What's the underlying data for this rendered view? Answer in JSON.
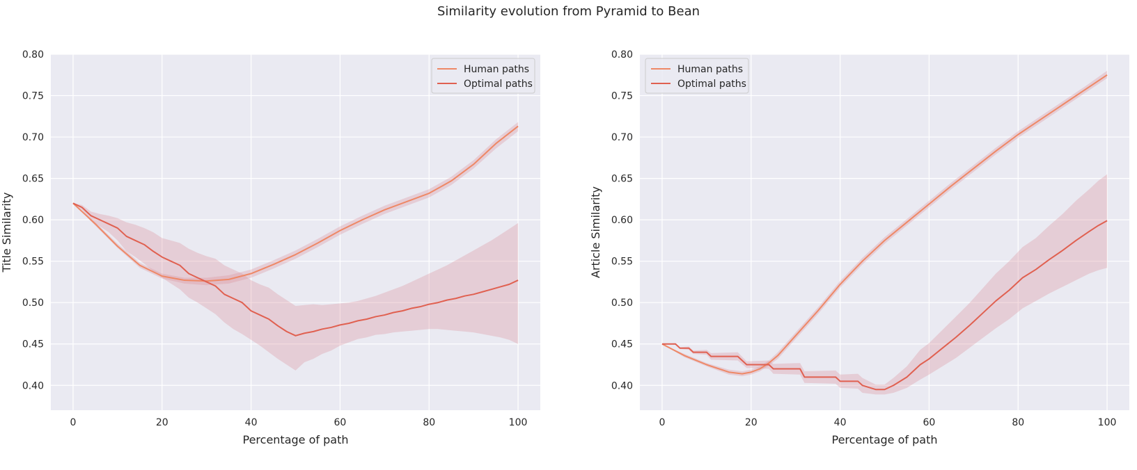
{
  "figure": {
    "suptitle": "Similarity evolution from Pyramid to Bean"
  },
  "colors": {
    "human": "#ee8866",
    "optimal": "#e06050",
    "band": "#d98c96",
    "axes_bg": "#eaeaf2",
    "grid": "#ffffff"
  },
  "chart_data": [
    {
      "type": "line",
      "xlabel": "Percentage of path",
      "ylabel": "Title Similarity",
      "xlim": [
        -5,
        105
      ],
      "ylim": [
        0.37,
        0.8
      ],
      "xticks": [
        0,
        20,
        40,
        60,
        80,
        100
      ],
      "yticks": [
        0.4,
        0.45,
        0.5,
        0.55,
        0.6,
        0.65,
        0.7,
        0.75,
        0.8
      ],
      "grid": true,
      "legend_position": "upper right",
      "series": [
        {
          "name": "Human paths",
          "x": [
            0,
            5,
            10,
            15,
            20,
            25,
            30,
            35,
            40,
            45,
            50,
            55,
            60,
            65,
            70,
            75,
            80,
            85,
            90,
            95,
            100
          ],
          "y": [
            0.62,
            0.595,
            0.568,
            0.545,
            0.532,
            0.527,
            0.526,
            0.528,
            0.535,
            0.546,
            0.558,
            0.572,
            0.587,
            0.6,
            0.612,
            0.622,
            0.632,
            0.647,
            0.667,
            0.692,
            0.713
          ],
          "lower": [
            0.62,
            0.593,
            0.566,
            0.542,
            0.529,
            0.523,
            0.521,
            0.523,
            0.53,
            0.541,
            0.553,
            0.567,
            0.582,
            0.595,
            0.607,
            0.617,
            0.627,
            0.642,
            0.662,
            0.686,
            0.707
          ],
          "upper": [
            0.62,
            0.597,
            0.571,
            0.548,
            0.535,
            0.53,
            0.53,
            0.533,
            0.54,
            0.551,
            0.563,
            0.577,
            0.592,
            0.605,
            0.617,
            0.627,
            0.637,
            0.652,
            0.672,
            0.697,
            0.718
          ]
        },
        {
          "name": "Optimal paths",
          "x": [
            0,
            2,
            4,
            6,
            8,
            10,
            12,
            14,
            16,
            18,
            20,
            22,
            24,
            26,
            28,
            30,
            32,
            34,
            36,
            38,
            40,
            42,
            44,
            46,
            48,
            50,
            52,
            54,
            56,
            58,
            60,
            62,
            64,
            66,
            68,
            70,
            72,
            74,
            76,
            78,
            80,
            82,
            84,
            86,
            88,
            90,
            92,
            94,
            96,
            98,
            100
          ],
          "y": [
            0.62,
            0.615,
            0.605,
            0.6,
            0.595,
            0.59,
            0.58,
            0.575,
            0.57,
            0.562,
            0.555,
            0.55,
            0.545,
            0.535,
            0.53,
            0.525,
            0.52,
            0.51,
            0.505,
            0.5,
            0.49,
            0.485,
            0.48,
            0.472,
            0.465,
            0.46,
            0.463,
            0.465,
            0.468,
            0.47,
            0.473,
            0.475,
            0.478,
            0.48,
            0.483,
            0.485,
            0.488,
            0.49,
            0.493,
            0.495,
            0.498,
            0.5,
            0.503,
            0.505,
            0.508,
            0.51,
            0.513,
            0.516,
            0.519,
            0.522,
            0.527
          ],
          "lower": [
            0.62,
            0.612,
            0.6,
            0.592,
            0.585,
            0.575,
            0.562,
            0.555,
            0.547,
            0.538,
            0.53,
            0.523,
            0.516,
            0.506,
            0.5,
            0.493,
            0.486,
            0.476,
            0.468,
            0.462,
            0.455,
            0.448,
            0.44,
            0.432,
            0.425,
            0.418,
            0.428,
            0.432,
            0.438,
            0.442,
            0.448,
            0.452,
            0.456,
            0.458,
            0.461,
            0.462,
            0.464,
            0.465,
            0.466,
            0.467,
            0.468,
            0.468,
            0.467,
            0.466,
            0.465,
            0.464,
            0.462,
            0.46,
            0.458,
            0.455,
            0.45
          ],
          "upper": [
            0.62,
            0.618,
            0.61,
            0.607,
            0.605,
            0.602,
            0.597,
            0.594,
            0.59,
            0.585,
            0.578,
            0.575,
            0.572,
            0.565,
            0.56,
            0.556,
            0.553,
            0.545,
            0.54,
            0.535,
            0.527,
            0.522,
            0.518,
            0.51,
            0.503,
            0.496,
            0.497,
            0.498,
            0.497,
            0.498,
            0.499,
            0.5,
            0.502,
            0.505,
            0.508,
            0.512,
            0.516,
            0.52,
            0.525,
            0.53,
            0.535,
            0.54,
            0.545,
            0.551,
            0.557,
            0.563,
            0.569,
            0.575,
            0.582,
            0.589,
            0.596
          ]
        }
      ]
    },
    {
      "type": "line",
      "xlabel": "Percentage of path",
      "ylabel": "Article Similarity",
      "xlim": [
        -5,
        105
      ],
      "ylim": [
        0.37,
        0.8
      ],
      "xticks": [
        0,
        20,
        40,
        60,
        80,
        100
      ],
      "yticks": [
        0.4,
        0.45,
        0.5,
        0.55,
        0.6,
        0.65,
        0.7,
        0.75,
        0.8
      ],
      "grid": true,
      "legend_position": "upper left",
      "series": [
        {
          "name": "Human paths",
          "x": [
            0,
            5,
            10,
            15,
            18,
            20,
            22,
            24,
            26,
            28,
            30,
            35,
            40,
            45,
            50,
            55,
            60,
            65,
            70,
            75,
            80,
            85,
            90,
            95,
            100
          ],
          "y": [
            0.45,
            0.436,
            0.425,
            0.416,
            0.414,
            0.416,
            0.42,
            0.427,
            0.436,
            0.448,
            0.46,
            0.49,
            0.522,
            0.55,
            0.575,
            0.597,
            0.619,
            0.641,
            0.662,
            0.683,
            0.703,
            0.721,
            0.739,
            0.757,
            0.775
          ],
          "lower": [
            0.45,
            0.434,
            0.423,
            0.413,
            0.411,
            0.413,
            0.417,
            0.424,
            0.432,
            0.444,
            0.456,
            0.486,
            0.518,
            0.546,
            0.571,
            0.593,
            0.615,
            0.637,
            0.658,
            0.679,
            0.699,
            0.717,
            0.735,
            0.753,
            0.771
          ],
          "upper": [
            0.45,
            0.438,
            0.427,
            0.419,
            0.417,
            0.419,
            0.423,
            0.43,
            0.44,
            0.452,
            0.464,
            0.494,
            0.526,
            0.554,
            0.579,
            0.601,
            0.623,
            0.645,
            0.666,
            0.687,
            0.707,
            0.725,
            0.743,
            0.761,
            0.78
          ]
        },
        {
          "name": "Optimal paths",
          "x": [
            0,
            3,
            4,
            6,
            7,
            10,
            11,
            17,
            19,
            24,
            25,
            31,
            32,
            39,
            40,
            44,
            45,
            48,
            50,
            52,
            55,
            58,
            60,
            63,
            66,
            69,
            72,
            75,
            78,
            81,
            84,
            87,
            90,
            93,
            96,
            98,
            100
          ],
          "y": [
            0.45,
            0.45,
            0.445,
            0.445,
            0.44,
            0.44,
            0.435,
            0.435,
            0.425,
            0.425,
            0.42,
            0.42,
            0.41,
            0.41,
            0.405,
            0.405,
            0.4,
            0.395,
            0.395,
            0.4,
            0.41,
            0.425,
            0.432,
            0.445,
            0.458,
            0.472,
            0.487,
            0.502,
            0.515,
            0.53,
            0.54,
            0.552,
            0.563,
            0.575,
            0.586,
            0.593,
            0.599
          ],
          "lower": [
            0.45,
            0.449,
            0.444,
            0.443,
            0.438,
            0.437,
            0.431,
            0.43,
            0.421,
            0.42,
            0.414,
            0.413,
            0.403,
            0.402,
            0.397,
            0.396,
            0.391,
            0.389,
            0.389,
            0.391,
            0.397,
            0.407,
            0.413,
            0.423,
            0.433,
            0.445,
            0.457,
            0.469,
            0.48,
            0.493,
            0.502,
            0.511,
            0.519,
            0.527,
            0.535,
            0.539,
            0.542
          ],
          "upper": [
            0.45,
            0.451,
            0.446,
            0.447,
            0.442,
            0.443,
            0.439,
            0.44,
            0.429,
            0.43,
            0.426,
            0.427,
            0.417,
            0.418,
            0.413,
            0.414,
            0.409,
            0.401,
            0.401,
            0.409,
            0.423,
            0.443,
            0.451,
            0.467,
            0.483,
            0.499,
            0.517,
            0.535,
            0.55,
            0.567,
            0.578,
            0.593,
            0.607,
            0.623,
            0.637,
            0.647,
            0.655
          ]
        }
      ]
    }
  ]
}
